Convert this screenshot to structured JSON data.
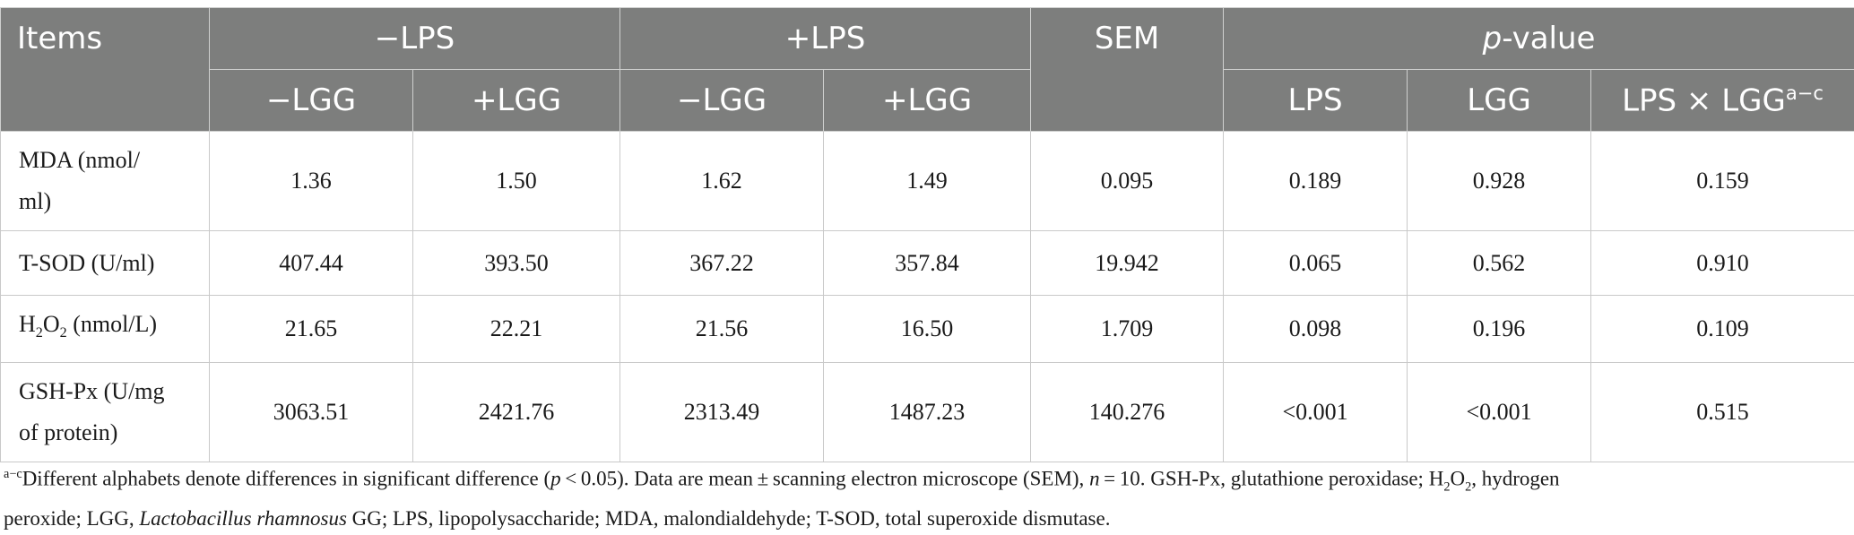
{
  "table": {
    "header": {
      "items": "Items",
      "minus_lps": "−LPS",
      "plus_lps": "+LPS",
      "sem": "SEM",
      "pvalue_p": "p",
      "pvalue_rest": "-value",
      "sub": {
        "minus_lgg_1": "−LGG",
        "plus_lgg_1": "+LGG",
        "minus_lgg_2": "−LGG",
        "plus_lgg_2": "+LGG",
        "lps": "LPS",
        "lgg": "LGG",
        "interaction": "LPS × LGG",
        "interaction_sup": "a−c"
      }
    },
    "rows": [
      {
        "label_line1": "MDA (nmol/",
        "label_line2": "ml)",
        "values": [
          "1.36",
          "1.50",
          "1.62",
          "1.49",
          "0.095",
          "0.189",
          "0.928",
          "0.159"
        ]
      },
      {
        "label": "T-SOD (U/ml)",
        "values": [
          "407.44",
          "393.50",
          "367.22",
          "357.84",
          "19.942",
          "0.065",
          "0.562",
          "0.910"
        ]
      },
      {
        "label_pre": "H",
        "label_sub1": "2",
        "label_mid": "O",
        "label_sub2": "2",
        "label_post": " (nmol/L)",
        "values": [
          "21.65",
          "22.21",
          "21.56",
          "16.50",
          "1.709",
          "0.098",
          "0.196",
          "0.109"
        ]
      },
      {
        "label_line1": "GSH-Px (U/mg",
        "label_line2": "of protein)",
        "values": [
          "3063.51",
          "2421.76",
          "2313.49",
          "1487.23",
          "140.276",
          "<0.001",
          "<0.001",
          "0.515"
        ]
      }
    ]
  },
  "footnote": {
    "sup": "a−c",
    "t1": "Different alphabets denote differences in significant difference (",
    "t1_p": "p",
    "t2": " < 0.05). Data are mean ± scanning electron microscope (SEM), ",
    "t2_n": "n",
    "t3": " = 10. GSH-Px, glutathione peroxidase; H",
    "t3_sub1": "2",
    "t3_mid": "O",
    "t3_sub2": "2",
    "t4": ", hydrogen",
    "t5": "peroxide; LGG, ",
    "t5_it": "Lactobacillus rhamnosus",
    "t6": " GG; LPS, lipopolysaccharide; MDA, malondialdehyde; T-SOD, total superoxide dismutase."
  }
}
